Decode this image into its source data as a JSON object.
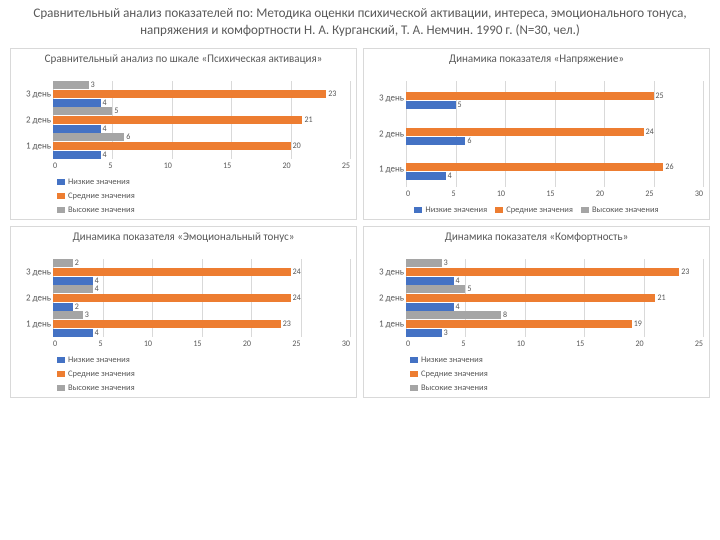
{
  "page_title": "Сравнительный анализ показателей по: Методика оценки психической активации, интереса, эмоционального тонуса, напряжения и комфортности Н. А. Курганский, Т. А. Немчин. 1990 г. (N=30, чел.)",
  "colors": {
    "low": "#4472c4",
    "mid": "#ed7d31",
    "high": "#a5a5a5",
    "grid": "#d9d9d9",
    "text": "#595959",
    "background": "#ffffff"
  },
  "legend_labels": {
    "low": "Низкие значения",
    "mid": "Средние значения",
    "high": "Высокие значения"
  },
  "charts": [
    {
      "title": "Сравнительный анализ по шкале «Психическая активация»",
      "categories": [
        "3 день",
        "2 день",
        "1 день"
      ],
      "series": [
        {
          "key": "high",
          "values": [
            3,
            5,
            6
          ]
        },
        {
          "key": "mid",
          "values": [
            23,
            21,
            20
          ]
        },
        {
          "key": "low",
          "values": [
            4,
            4,
            4
          ]
        }
      ],
      "xmax": 25,
      "xticks": [
        0,
        5,
        10,
        15,
        20,
        25
      ],
      "legend_layout": "two-col"
    },
    {
      "title": "Динамика показателя «Напряжение»",
      "categories": [
        "3 день",
        "2 день",
        "1 день"
      ],
      "series": [
        {
          "key": "high",
          "values": [
            null,
            null,
            null
          ]
        },
        {
          "key": "mid",
          "values": [
            25,
            24,
            26
          ]
        },
        {
          "key": "low",
          "values": [
            5,
            6,
            4
          ]
        }
      ],
      "xmax": 30,
      "xticks": [
        0,
        5,
        10,
        15,
        20,
        25,
        30
      ],
      "legend_layout": "one-row"
    },
    {
      "title": "Динамика показателя «Эмоциональный тонус»",
      "categories": [
        "3 день",
        "2 день",
        "1 день"
      ],
      "series": [
        {
          "key": "high",
          "values": [
            2,
            4,
            3
          ]
        },
        {
          "key": "mid",
          "values": [
            24,
            24,
            23
          ]
        },
        {
          "key": "low",
          "values": [
            4,
            2,
            4
          ]
        }
      ],
      "xmax": 30,
      "xticks": [
        0,
        5,
        10,
        15,
        20,
        25,
        30
      ],
      "legend_layout": "two-col"
    },
    {
      "title": "Динамика показателя «Комфортность»",
      "categories": [
        "3 день",
        "2 день",
        "1 день"
      ],
      "series": [
        {
          "key": "high",
          "values": [
            3,
            5,
            8
          ]
        },
        {
          "key": "mid",
          "values": [
            23,
            21,
            19
          ]
        },
        {
          "key": "low",
          "values": [
            4,
            4,
            3
          ]
        }
      ],
      "xmax": 25,
      "xticks": [
        0,
        5,
        10,
        15,
        20,
        25
      ],
      "legend_layout": "two-col"
    }
  ]
}
